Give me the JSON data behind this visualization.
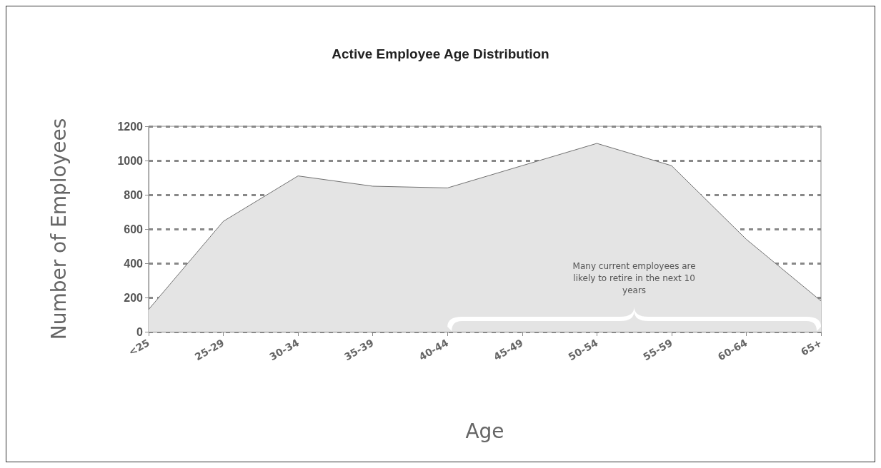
{
  "chart_data": {
    "type": "area",
    "title": "Active Employee Age Distribution",
    "xlabel": "Age",
    "ylabel": "Number of Employees",
    "categories": [
      "<25",
      "25-29",
      "30-34",
      "35-39",
      "40-44",
      "45-49",
      "50-54",
      "55-59",
      "60-64",
      "65+"
    ],
    "values": [
      130,
      645,
      910,
      850,
      840,
      970,
      1100,
      970,
      540,
      180
    ],
    "color": "#e4e4e4",
    "ylim": [
      0,
      1200
    ],
    "yticks": [
      0,
      200,
      400,
      600,
      800,
      {
        "value": 1000,
        "label": "1000"
      },
      {
        "value": 1200,
        "label": "1200"
      }
    ],
    "grid": "y",
    "annotations": [
      "Many current employees are likely to retire in the next 10 years"
    ]
  }
}
